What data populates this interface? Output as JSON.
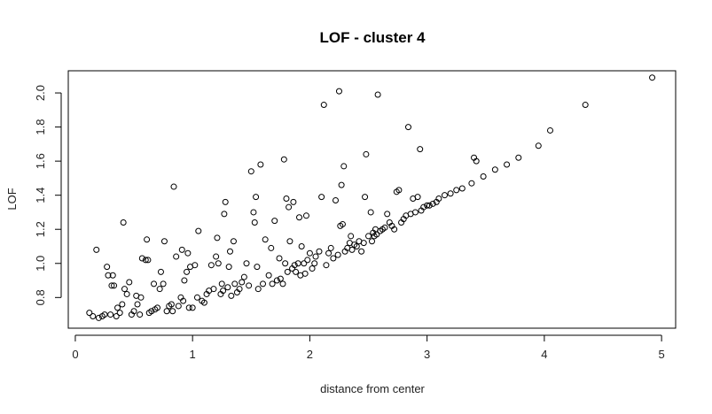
{
  "chart_data": {
    "type": "scatter",
    "title": "LOF - cluster  4",
    "xlabel": "distance from center",
    "ylabel": "LOF",
    "xlim": [
      -0.06,
      5.12
    ],
    "ylim": [
      0.62,
      2.13
    ],
    "x_ticks": [
      "0",
      "1",
      "2",
      "3",
      "4",
      "5"
    ],
    "y_ticks": [
      "0.8",
      "1.0",
      "1.2",
      "1.4",
      "1.6",
      "1.8",
      "2.0"
    ],
    "grid": false,
    "marker": "open-circle",
    "colors": {
      "points": "#000000",
      "axes": "#000000",
      "background": "#ffffff"
    },
    "points": [
      [
        0.12,
        0.71
      ],
      [
        0.15,
        0.69
      ],
      [
        0.18,
        1.08
      ],
      [
        0.2,
        0.68
      ],
      [
        0.23,
        0.69
      ],
      [
        0.25,
        0.7
      ],
      [
        0.27,
        0.98
      ],
      [
        0.28,
        0.93
      ],
      [
        0.3,
        0.7
      ],
      [
        0.31,
        0.87
      ],
      [
        0.32,
        0.93
      ],
      [
        0.33,
        0.87
      ],
      [
        0.35,
        0.69
      ],
      [
        0.36,
        0.74
      ],
      [
        0.38,
        0.71
      ],
      [
        0.4,
        0.76
      ],
      [
        0.42,
        0.85
      ],
      [
        0.41,
        1.24
      ],
      [
        0.44,
        0.82
      ],
      [
        0.46,
        0.89
      ],
      [
        0.48,
        0.7
      ],
      [
        0.5,
        0.72
      ],
      [
        0.52,
        0.81
      ],
      [
        0.53,
        0.76
      ],
      [
        0.55,
        0.7
      ],
      [
        0.56,
        0.8
      ],
      [
        0.57,
        1.03
      ],
      [
        0.6,
        1.02
      ],
      [
        0.61,
        1.14
      ],
      [
        0.62,
        1.02
      ],
      [
        0.63,
        0.71
      ],
      [
        0.65,
        0.72
      ],
      [
        0.67,
        0.88
      ],
      [
        0.68,
        0.73
      ],
      [
        0.7,
        0.74
      ],
      [
        0.72,
        0.85
      ],
      [
        0.73,
        0.95
      ],
      [
        0.75,
        0.88
      ],
      [
        0.76,
        1.13
      ],
      [
        0.78,
        0.72
      ],
      [
        0.8,
        0.75
      ],
      [
        0.82,
        0.76
      ],
      [
        0.83,
        0.72
      ],
      [
        0.84,
        1.45
      ],
      [
        0.86,
        1.04
      ],
      [
        0.88,
        0.75
      ],
      [
        0.9,
        0.8
      ],
      [
        0.91,
        1.08
      ],
      [
        0.92,
        0.78
      ],
      [
        0.93,
        0.9
      ],
      [
        0.95,
        0.95
      ],
      [
        0.96,
        1.06
      ],
      [
        0.97,
        0.74
      ],
      [
        0.98,
        0.98
      ],
      [
        1.0,
        0.74
      ],
      [
        1.02,
        0.99
      ],
      [
        1.04,
        0.8
      ],
      [
        1.05,
        1.19
      ],
      [
        1.08,
        0.78
      ],
      [
        1.1,
        0.77
      ],
      [
        1.12,
        0.82
      ],
      [
        1.14,
        0.84
      ],
      [
        1.16,
        0.99
      ],
      [
        1.18,
        0.85
      ],
      [
        1.2,
        1.04
      ],
      [
        1.21,
        1.15
      ],
      [
        1.22,
        1.0
      ],
      [
        1.24,
        0.82
      ],
      [
        1.25,
        0.88
      ],
      [
        1.26,
        0.84
      ],
      [
        1.27,
        1.29
      ],
      [
        1.28,
        1.36
      ],
      [
        1.3,
        0.86
      ],
      [
        1.31,
        0.98
      ],
      [
        1.32,
        1.07
      ],
      [
        1.33,
        0.81
      ],
      [
        1.35,
        1.13
      ],
      [
        1.36,
        0.88
      ],
      [
        1.38,
        0.83
      ],
      [
        1.4,
        0.85
      ],
      [
        1.42,
        0.89
      ],
      [
        1.44,
        0.92
      ],
      [
        1.46,
        1.0
      ],
      [
        1.48,
        0.87
      ],
      [
        1.5,
        1.54
      ],
      [
        1.52,
        1.3
      ],
      [
        1.53,
        1.24
      ],
      [
        1.54,
        1.39
      ],
      [
        1.55,
        0.98
      ],
      [
        1.56,
        0.85
      ],
      [
        1.58,
        1.58
      ],
      [
        1.6,
        0.88
      ],
      [
        1.62,
        1.14
      ],
      [
        1.65,
        0.93
      ],
      [
        1.67,
        1.09
      ],
      [
        1.68,
        0.88
      ],
      [
        1.7,
        1.25
      ],
      [
        1.72,
        0.9
      ],
      [
        1.74,
        1.03
      ],
      [
        1.75,
        0.91
      ],
      [
        1.77,
        0.88
      ],
      [
        1.78,
        1.61
      ],
      [
        1.79,
        1.0
      ],
      [
        1.8,
        1.38
      ],
      [
        1.81,
        0.95
      ],
      [
        1.82,
        1.33
      ],
      [
        1.83,
        1.13
      ],
      [
        1.85,
        0.97
      ],
      [
        1.86,
        1.36
      ],
      [
        1.87,
        0.99
      ],
      [
        1.88,
        0.95
      ],
      [
        1.9,
        1.0
      ],
      [
        1.91,
        1.27
      ],
      [
        1.92,
        0.93
      ],
      [
        1.93,
        1.1
      ],
      [
        1.95,
        1.0
      ],
      [
        1.96,
        0.94
      ],
      [
        1.97,
        1.28
      ],
      [
        1.98,
        1.02
      ],
      [
        2.0,
        1.06
      ],
      [
        2.02,
        0.97
      ],
      [
        2.04,
        1.0
      ],
      [
        2.05,
        1.04
      ],
      [
        2.08,
        1.07
      ],
      [
        2.1,
        1.39
      ],
      [
        2.12,
        1.93
      ],
      [
        2.14,
        0.99
      ],
      [
        2.16,
        1.06
      ],
      [
        2.18,
        1.09
      ],
      [
        2.2,
        1.03
      ],
      [
        2.22,
        1.37
      ],
      [
        2.24,
        1.05
      ],
      [
        2.25,
        2.01
      ],
      [
        2.26,
        1.22
      ],
      [
        2.27,
        1.46
      ],
      [
        2.28,
        1.23
      ],
      [
        2.29,
        1.57
      ],
      [
        2.3,
        1.07
      ],
      [
        2.32,
        1.09
      ],
      [
        2.34,
        1.12
      ],
      [
        2.35,
        1.16
      ],
      [
        2.36,
        1.08
      ],
      [
        2.38,
        1.11
      ],
      [
        2.4,
        1.1
      ],
      [
        2.42,
        1.13
      ],
      [
        2.44,
        1.07
      ],
      [
        2.46,
        1.12
      ],
      [
        2.47,
        1.39
      ],
      [
        2.48,
        1.64
      ],
      [
        2.5,
        1.16
      ],
      [
        2.52,
        1.3
      ],
      [
        2.53,
        1.13
      ],
      [
        2.54,
        1.18
      ],
      [
        2.55,
        1.16
      ],
      [
        2.56,
        1.2
      ],
      [
        2.57,
        1.17
      ],
      [
        2.58,
        1.99
      ],
      [
        2.6,
        1.19
      ],
      [
        2.62,
        1.2
      ],
      [
        2.64,
        1.21
      ],
      [
        2.66,
        1.29
      ],
      [
        2.68,
        1.24
      ],
      [
        2.7,
        1.22
      ],
      [
        2.72,
        1.2
      ],
      [
        2.74,
        1.42
      ],
      [
        2.76,
        1.43
      ],
      [
        2.78,
        1.24
      ],
      [
        2.8,
        1.26
      ],
      [
        2.82,
        1.28
      ],
      [
        2.84,
        1.8
      ],
      [
        2.86,
        1.29
      ],
      [
        2.88,
        1.38
      ],
      [
        2.9,
        1.3
      ],
      [
        2.92,
        1.39
      ],
      [
        2.94,
        1.67
      ],
      [
        2.95,
        1.31
      ],
      [
        2.97,
        1.33
      ],
      [
        3.0,
        1.34
      ],
      [
        3.02,
        1.34
      ],
      [
        3.05,
        1.35
      ],
      [
        3.08,
        1.36
      ],
      [
        3.1,
        1.38
      ],
      [
        3.15,
        1.4
      ],
      [
        3.2,
        1.41
      ],
      [
        3.25,
        1.43
      ],
      [
        3.3,
        1.44
      ],
      [
        3.38,
        1.47
      ],
      [
        3.4,
        1.62
      ],
      [
        3.42,
        1.6
      ],
      [
        3.48,
        1.51
      ],
      [
        3.58,
        1.55
      ],
      [
        3.68,
        1.58
      ],
      [
        3.78,
        1.62
      ],
      [
        3.95,
        1.69
      ],
      [
        4.05,
        1.78
      ],
      [
        4.35,
        1.93
      ],
      [
        4.92,
        2.09
      ]
    ]
  }
}
